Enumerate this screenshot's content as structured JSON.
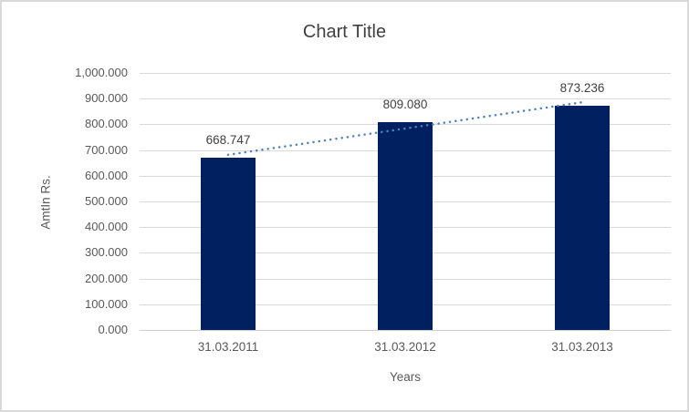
{
  "window": {
    "background": "#ffffff",
    "border_color": "#d9d9d9"
  },
  "chart_data": {
    "type": "bar",
    "title": "Chart Title",
    "categories": [
      "31.03.2011",
      "31.03.2012",
      "31.03.2013"
    ],
    "values": [
      668.747,
      809.08,
      873.236
    ],
    "data_labels": [
      "668.747",
      "809.080",
      "873.236"
    ],
    "xlabel": "Years",
    "ylabel": "AmtIn Rs.",
    "ylim": [
      0,
      1000
    ],
    "ytick_step": 100,
    "ytick_labels": [
      "0.000",
      "100.000",
      "200.000",
      "300.000",
      "400.000",
      "500.000",
      "600.000",
      "700.000",
      "800.000",
      "900.000",
      "1,000.000"
    ],
    "grid": true,
    "legend_position": "none",
    "trendline": {
      "type": "linear",
      "style": "dotted",
      "color": "#4f81bd"
    },
    "colors": {
      "bar": "#002060",
      "gridline": "#d9d9d9",
      "axis_line": "#cfcdcd",
      "title_text": "#404040",
      "axis_text": "#595959",
      "data_label_text": "#404040"
    }
  }
}
